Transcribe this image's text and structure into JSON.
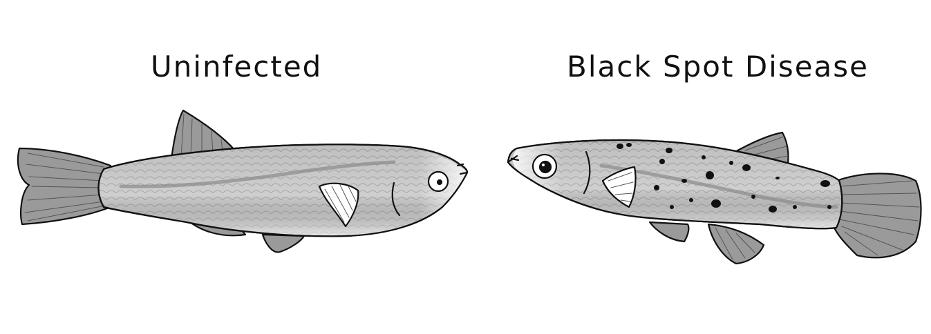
{
  "labels": {
    "uninfected": "Uninfected",
    "infected": "Black Spot Disease"
  },
  "colors": {
    "outline": "#111111",
    "body": "#cfcfcf",
    "fin": "#9a9a9a",
    "lateral_line": "#8a8a8a",
    "spot": "#111111",
    "background": "#ffffff"
  },
  "icons": [
    "uninfected-fish-icon",
    "infected-fish-icon",
    "black-spot-icon"
  ]
}
